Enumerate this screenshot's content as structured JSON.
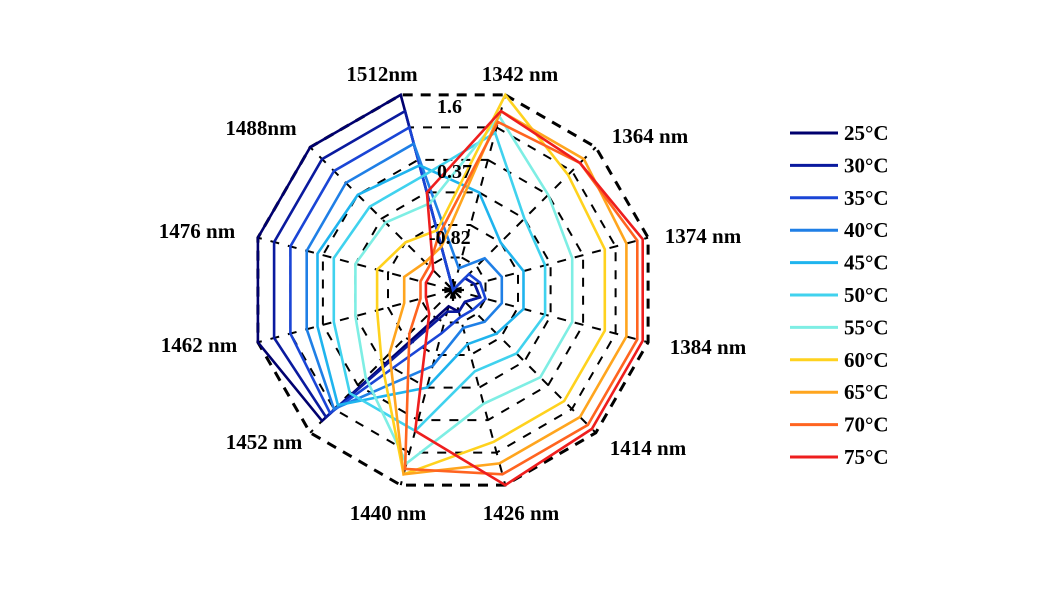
{
  "chart_data": {
    "type": "radar",
    "title": "",
    "axes": [
      "1342 nm",
      "1364 nm",
      "1374 nm",
      "1384 nm",
      "1414 nm",
      "1426 nm",
      "1440 nm",
      "1452 nm",
      "1462 nm",
      "1476 nm",
      "1488nm",
      "1512nm"
    ],
    "ring_labels": [
      "1.6",
      "0.37",
      "-0.82"
    ],
    "r_range": [
      -2.0,
      1.6
    ],
    "grid": true,
    "legend_position": "right",
    "series": [
      {
        "name": "25°C",
        "color": "#00006e",
        "values": [
          -2.0,
          -1.7,
          -1.6,
          -1.5,
          -1.7,
          -1.6,
          -1.7,
          1.3,
          1.6,
          1.6,
          1.6,
          1.6
        ]
      },
      {
        "name": "30°C",
        "color": "#0a1a9e",
        "values": [
          -2.0,
          -1.7,
          -1.6,
          -1.5,
          -1.7,
          -1.6,
          -1.6,
          1.2,
          1.3,
          1.3,
          1.3,
          1.3
        ]
      },
      {
        "name": "35°C",
        "color": "#1a45d6",
        "values": [
          -2.0,
          -1.6,
          -1.5,
          -1.4,
          -1.5,
          -1.5,
          -1.2,
          1.1,
          1.0,
          1.0,
          1.0,
          1.0
        ]
      },
      {
        "name": "40°C",
        "color": "#1f7fe6",
        "values": [
          -1.6,
          -1.2,
          -1.1,
          -1.1,
          -1.2,
          -1.3,
          -0.6,
          1.0,
          0.7,
          0.7,
          0.7,
          0.7
        ]
      },
      {
        "name": "45°C",
        "color": "#1fb4ee",
        "values": [
          -0.2,
          -0.8,
          -0.7,
          -0.7,
          -0.9,
          -1.0,
          -0.2,
          0.9,
          0.5,
          0.5,
          0.4,
          0.3
        ]
      },
      {
        "name": "50°C",
        "color": "#40d2ee",
        "values": [
          0.9,
          -0.2,
          -0.3,
          -0.3,
          -0.4,
          -0.5,
          0.6,
          0.6,
          0.2,
          0.2,
          0.1,
          0.1
        ]
      },
      {
        "name": "55°C",
        "color": "#7eeee4",
        "values": [
          1.2,
          0.4,
          0.2,
          0.2,
          0.2,
          0.1,
          1.2,
          0.2,
          -0.2,
          -0.2,
          -0.3,
          -0.4
        ]
      },
      {
        "name": "60°C",
        "color": "#ffd21e",
        "values": [
          1.6,
          0.9,
          0.8,
          0.8,
          0.8,
          0.8,
          1.4,
          -0.2,
          -0.6,
          -0.6,
          -0.8,
          -0.9
        ]
      },
      {
        "name": "65°C",
        "color": "#ffa51e",
        "values": [
          1.3,
          1.3,
          1.2,
          1.2,
          1.2,
          1.2,
          1.4,
          -0.4,
          -1.1,
          -1.1,
          -1.3,
          -1.2
        ]
      },
      {
        "name": "70°C",
        "color": "#ff6420",
        "values": [
          1.1,
          1.2,
          1.4,
          1.4,
          1.4,
          1.4,
          1.3,
          -0.9,
          -1.4,
          -1.4,
          -1.4,
          -1.0
        ]
      },
      {
        "name": "75°C",
        "color": "#ee1e1e",
        "values": [
          1.3,
          1.2,
          1.5,
          1.5,
          1.5,
          1.6,
          0.6,
          -1.4,
          -1.5,
          -1.5,
          -1.5,
          -0.2
        ]
      }
    ]
  }
}
